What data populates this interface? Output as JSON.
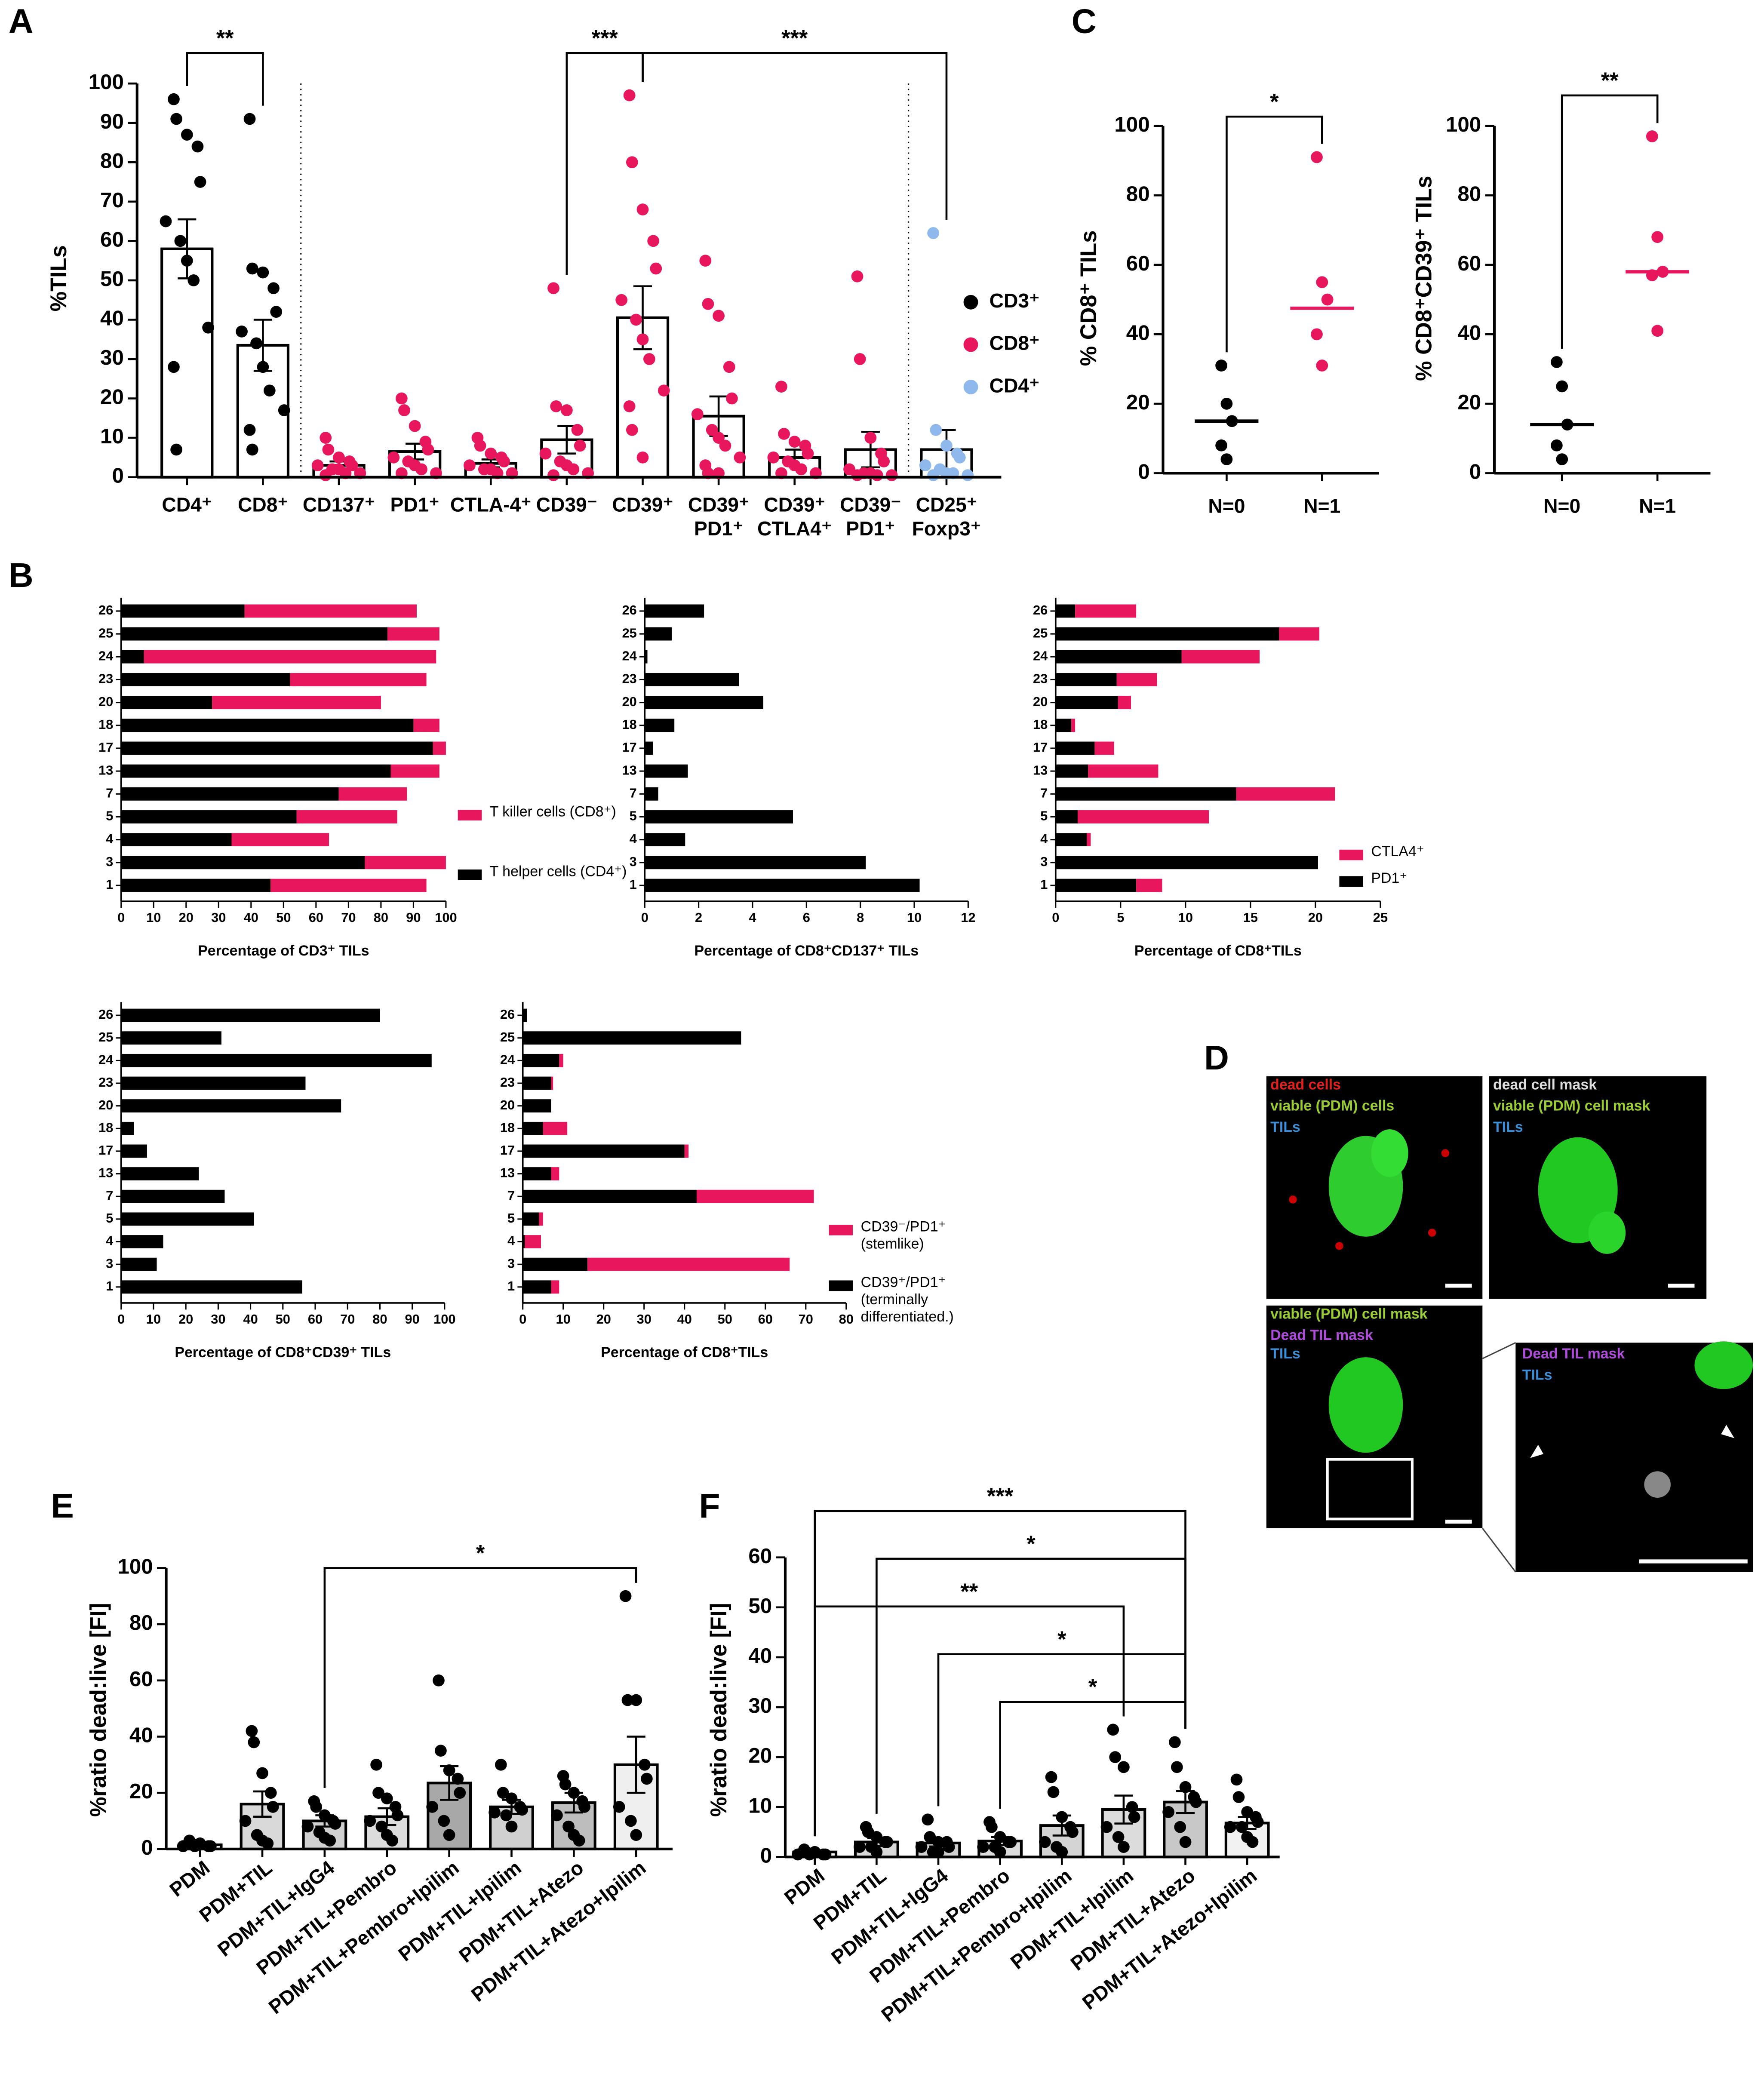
{
  "panel_labels": [
    "A",
    "B",
    "C",
    "D",
    "E",
    "F"
  ],
  "panel_d": {
    "images": [
      {
        "labels": [
          "dead cells",
          "viable (PDM) cells",
          "TILs"
        ]
      },
      {
        "labels": [
          "dead cell mask",
          "viable (PDM) cell mask",
          "TILs"
        ]
      },
      {
        "labels": [
          "viable (PDM) cell mask",
          "Dead TIL mask",
          "TILs"
        ]
      },
      {
        "labels": [
          "Dead TIL mask",
          "TILs"
        ]
      }
    ]
  },
  "chart_data": [
    {
      "type": "dot_bar",
      "ylabel": "%TILs",
      "categories": [
        [
          "CD4⁺"
        ],
        [
          "CD8⁺"
        ],
        [
          "CD137⁺"
        ],
        [
          "PD1⁺"
        ],
        [
          "CTLA-4⁺"
        ],
        [
          "CD39⁻"
        ],
        [
          "CD39⁺"
        ],
        [
          "CD39⁺",
          "PD1⁺"
        ],
        [
          "CD39⁺",
          "CTLA4⁺"
        ],
        [
          "CD39⁻",
          "PD1⁺"
        ],
        [
          "CD25⁺",
          "Foxp3⁺"
        ]
      ],
      "values": [
        58,
        33.5,
        3,
        6.5,
        3.5,
        9.5,
        40.5,
        15.5,
        5,
        7,
        7
      ],
      "errors": [
        7.5,
        6.5,
        1,
        2,
        1,
        3.5,
        8,
        5,
        2,
        4.5,
        5
      ],
      "points": [
        [
          96,
          91,
          87,
          84,
          75,
          65,
          60,
          55,
          50,
          38,
          28,
          7
        ],
        [
          91,
          53,
          52,
          48,
          42,
          37,
          34,
          28,
          22,
          17,
          12,
          7
        ],
        [
          10,
          7,
          5,
          4,
          3,
          3,
          2,
          2,
          1,
          1,
          0.5
        ],
        [
          20,
          17,
          13,
          9,
          7,
          5,
          4,
          3,
          2,
          1,
          1
        ],
        [
          10,
          8,
          6,
          5,
          4,
          3,
          2,
          2,
          1,
          1
        ],
        [
          48,
          18,
          17,
          12,
          8,
          6,
          4,
          3,
          2,
          1,
          0.5
        ],
        [
          97,
          80,
          68,
          60,
          53,
          45,
          40,
          35,
          30,
          22,
          18,
          12,
          5
        ],
        [
          55,
          44,
          41,
          28,
          20,
          16,
          12,
          10,
          8,
          5,
          3,
          1,
          1
        ],
        [
          23,
          11,
          9,
          8,
          6,
          5,
          4,
          3,
          2,
          1,
          1
        ],
        [
          51,
          30,
          10,
          6,
          4,
          2,
          1,
          1,
          0.5,
          0.5,
          0.5
        ],
        [
          62,
          12,
          8,
          6,
          5,
          3,
          2,
          1,
          1,
          0.5,
          0.5
        ]
      ],
      "point_colors": [
        "#000000",
        "#000000",
        "#e8175d",
        "#e8175d",
        "#e8175d",
        "#e8175d",
        "#e8175d",
        "#e8175d",
        "#e8175d",
        "#e8175d",
        "#8fb8ec"
      ],
      "bar_color": "#ffffff",
      "legend": [
        {
          "name": "CD3⁺",
          "color": "#000000"
        },
        {
          "name": "CD8⁺",
          "color": "#e8175d"
        },
        {
          "name": "CD4⁺",
          "color": "#8fb8ec"
        }
      ],
      "brackets": [
        {
          "from": [
            "CD4⁺"
          ],
          "to": [
            "CD8⁺"
          ],
          "label": "**"
        },
        {
          "from": [
            "CD39⁻"
          ],
          "to": [
            "CD39⁺"
          ],
          "label": "***"
        },
        {
          "from": [
            "CD39⁺"
          ],
          "to": [
            "CD25⁺",
            "Foxp3⁺"
          ],
          "label": "***"
        }
      ],
      "ylim": [
        0,
        100
      ],
      "yticks": [
        0,
        10,
        20,
        30,
        40,
        50,
        60,
        70,
        80,
        90,
        100
      ]
    },
    {
      "type": "dot_median",
      "ylabel": "% CD8⁺ TILs",
      "categories": [
        "N=0",
        "N=1"
      ],
      "points": [
        [
          31,
          20,
          15,
          8,
          4
        ],
        [
          91,
          55,
          50,
          40,
          31
        ]
      ],
      "medians": [
        15,
        47.5
      ],
      "point_colors": [
        "#000000",
        "#e8175d"
      ],
      "brackets": [
        {
          "from": "N=0",
          "to": "N=1",
          "label": "*"
        }
      ],
      "ylim": [
        0,
        100
      ],
      "yticks": [
        0,
        20,
        40,
        60,
        80,
        100
      ]
    },
    {
      "type": "dot_median",
      "ylabel": "% CD8⁺CD39⁺ TILs",
      "categories": [
        "N=0",
        "N=1"
      ],
      "points": [
        [
          32,
          25,
          14,
          8,
          4
        ],
        [
          97,
          68,
          58,
          57,
          41
        ]
      ],
      "medians": [
        14,
        58
      ],
      "point_colors": [
        "#000000",
        "#e8175d"
      ],
      "brackets": [
        {
          "from": "N=0",
          "to": "N=1",
          "label": "**"
        }
      ],
      "ylim": [
        0,
        100
      ],
      "yticks": [
        0,
        20,
        40,
        60,
        80,
        100
      ]
    },
    {
      "type": "hbar",
      "stacked": true,
      "xlabel": "Percentage of CD3⁺ TILs",
      "categories": [
        "26",
        "25",
        "24",
        "23",
        "20",
        "18",
        "17",
        "13",
        "7",
        "5",
        "4",
        "3",
        "1"
      ],
      "series": [
        {
          "name": "T helper cells (CD4⁺)",
          "color": "#000000",
          "values": [
            38,
            82,
            7,
            52,
            28,
            90,
            96,
            83,
            67,
            54,
            34,
            75,
            46
          ]
        },
        {
          "name": "T killer cells (CD8⁺)",
          "color": "#e8175d",
          "values": [
            53,
            16,
            90,
            42,
            52,
            8,
            4,
            15,
            21,
            31,
            30,
            25,
            48
          ]
        }
      ],
      "xlim": [
        0,
        100
      ],
      "xticks": [
        0,
        10,
        20,
        30,
        40,
        50,
        60,
        70,
        80,
        90,
        100
      ]
    },
    {
      "type": "hbar",
      "xlabel": "Percentage of CD8⁺CD137⁺ TILs",
      "categories": [
        "26",
        "25",
        "24",
        "23",
        "20",
        "18",
        "17",
        "13",
        "7",
        "5",
        "4",
        "3",
        "1"
      ],
      "series": [
        {
          "color": "#000000",
          "values": [
            2.2,
            1.0,
            0.1,
            3.5,
            4.4,
            1.1,
            0.3,
            1.6,
            0.5,
            5.5,
            1.5,
            8.2,
            10.2
          ]
        }
      ],
      "xlim": [
        0,
        12
      ],
      "xticks": [
        0,
        2,
        4,
        6,
        8,
        10,
        12
      ]
    },
    {
      "type": "hbar",
      "stacked": true,
      "xlabel": "Percentage of CD8⁺TILs",
      "categories": [
        "26",
        "25",
        "24",
        "23",
        "20",
        "18",
        "17",
        "13",
        "7",
        "5",
        "4",
        "3",
        "1"
      ],
      "series": [
        {
          "name": "PD1⁺",
          "color": "#000000",
          "values": [
            1.5,
            17.2,
            9.7,
            4.7,
            4.8,
            1.2,
            3.0,
            2.5,
            13.9,
            1.7,
            2.4,
            20.2,
            6.2
          ]
        },
        {
          "name": "CTLA4⁺",
          "color": "#e8175d",
          "values": [
            4.7,
            3.1,
            6.0,
            3.1,
            1.0,
            0.3,
            1.5,
            5.4,
            7.6,
            10.1,
            0.3,
            0,
            2.0
          ]
        }
      ],
      "xlim": [
        0,
        25
      ],
      "xticks": [
        0,
        5,
        10,
        15,
        20,
        25
      ]
    },
    {
      "type": "hbar",
      "xlabel": "Percentage of CD8⁺CD39⁺ TILs",
      "categories": [
        "26",
        "25",
        "24",
        "23",
        "20",
        "18",
        "17",
        "13",
        "7",
        "5",
        "4",
        "3",
        "1"
      ],
      "series": [
        {
          "color": "#000000",
          "values": [
            80,
            31,
            96,
            57,
            68,
            4,
            8,
            24,
            32,
            41,
            13,
            11,
            56
          ]
        }
      ],
      "xlim": [
        0,
        100
      ],
      "xticks": [
        0,
        10,
        20,
        30,
        40,
        50,
        60,
        70,
        80,
        90,
        100
      ]
    },
    {
      "type": "hbar",
      "stacked": true,
      "xlabel": "Percentage of CD8⁺TILs",
      "categories": [
        "26",
        "25",
        "24",
        "23",
        "20",
        "18",
        "17",
        "13",
        "7",
        "5",
        "4",
        "3",
        "1"
      ],
      "series": [
        {
          "name": "CD39⁺/PD1⁺ (terminally differentiated.)",
          "color": "#000000",
          "values": [
            1,
            54,
            9,
            7,
            7,
            5,
            40,
            7,
            43,
            4,
            0.5,
            16,
            7
          ]
        },
        {
          "name": "CD39⁻/PD1⁺ (stemlike)",
          "color": "#e8175d",
          "values": [
            0,
            0,
            1,
            0.5,
            0,
            6,
            1,
            2,
            29,
            1,
            4,
            50,
            2
          ]
        }
      ],
      "xlim": [
        0,
        80
      ],
      "xticks": [
        0,
        10,
        20,
        30,
        40,
        50,
        60,
        70,
        80
      ]
    },
    {
      "type": "dot_bar",
      "ylabel": "%ratio dead:live [FI]",
      "categories": [
        "PDM",
        "PDM+TIL",
        "PDM+TIL+IgG4",
        "PDM+TIL+Pembro",
        "PDM+TIL+Pembro+Ipilim",
        "PDM+TIL+Ipilim",
        "PDM+TIL+Atezo",
        "PDM+TIL+Atezo+Ipilim"
      ],
      "values": [
        1.5,
        16,
        10,
        11.5,
        23.5,
        15,
        16.5,
        30
      ],
      "errors": [
        0.5,
        4.5,
        2,
        3,
        6,
        2.5,
        3.5,
        10
      ],
      "points": [
        [
          3,
          2,
          2,
          1,
          1,
          1,
          1
        ],
        [
          42,
          38,
          27,
          20,
          15,
          10,
          5,
          3,
          2
        ],
        [
          17,
          15,
          12,
          10,
          9,
          8,
          6,
          4,
          3
        ],
        [
          30,
          20,
          18,
          15,
          12,
          10,
          8,
          5,
          3
        ],
        [
          60,
          35,
          28,
          25,
          20,
          15,
          10,
          5
        ],
        [
          30,
          20,
          18,
          15,
          14,
          13,
          12,
          8
        ],
        [
          26,
          23,
          20,
          17,
          15,
          12,
          8,
          5,
          3
        ],
        [
          90,
          53,
          53,
          30,
          25,
          15,
          10,
          5
        ]
      ],
      "point_colors": [
        "#000000",
        "#000000",
        "#000000",
        "#000000",
        "#000000",
        "#000000",
        "#000000",
        "#000000"
      ],
      "bar_colors": [
        "#ffffff",
        "#d9d9d9",
        "#d0d0d0",
        "#dcdcdc",
        "#a8a8a8",
        "#d0d0d0",
        "#bdbdbd",
        "#efefef"
      ],
      "brackets": [
        {
          "from": "PDM+TIL+IgG4",
          "to": "PDM+TIL+Atezo+Ipilim",
          "label": "*"
        }
      ],
      "ylim": [
        0,
        100
      ],
      "yticks": [
        0,
        20,
        40,
        60,
        80,
        100
      ]
    },
    {
      "type": "dot_bar",
      "ylabel": "%ratio dead:live [FI]",
      "categories": [
        "PDM",
        "PDM+TIL",
        "PDM+TIL+IgG4",
        "PDM+TIL+Pembro",
        "PDM+TIL+Pembro+Ipilim",
        "PDM+TIL+Ipilim",
        "PDM+TIL+Atezo",
        "PDM+TIL+Atezo+Ipilim"
      ],
      "values": [
        1,
        3,
        2.8,
        3.2,
        6.3,
        9.5,
        11,
        6.8
      ],
      "errors": [
        0.3,
        0.8,
        0.7,
        0.8,
        2,
        2.8,
        2.2,
        1.2
      ],
      "points": [
        [
          1.5,
          1,
          1,
          0.5,
          0.5,
          0.5,
          0.5
        ],
        [
          6,
          5,
          4,
          3,
          3,
          2,
          2,
          1
        ],
        [
          7.5,
          4,
          3,
          3,
          2,
          2,
          1,
          1
        ],
        [
          7,
          6,
          4,
          3,
          3,
          2,
          2,
          1
        ],
        [
          16,
          13,
          8,
          6,
          5,
          3,
          2,
          1
        ],
        [
          25.5,
          20,
          18,
          10,
          8,
          6,
          4,
          2
        ],
        [
          23,
          18,
          14,
          12,
          11,
          9,
          6,
          3
        ],
        [
          15.5,
          12,
          9,
          8,
          7,
          6,
          6,
          4,
          3
        ]
      ],
      "point_colors": [
        "#000000",
        "#000000",
        "#000000",
        "#000000",
        "#000000",
        "#000000",
        "#000000",
        "#000000"
      ],
      "bar_colors": [
        "#ffffff",
        "#d9d9d9",
        "#d0d0d0",
        "#dcdcdc",
        "#d4d4d4",
        "#dcdcdc",
        "#c8c8c8",
        "#f2f2f2"
      ],
      "brackets": [
        {
          "from": "PDM",
          "to": "PDM+TIL+Atezo",
          "label": "***"
        },
        {
          "from": "PDM+TIL",
          "to": "PDM+TIL+Atezo",
          "label": "*"
        },
        {
          "from": "PDM",
          "to": "PDM+TIL+Ipilim",
          "label": "**"
        },
        {
          "from": "PDM+TIL+IgG4",
          "to": "PDM+TIL+Atezo",
          "label": "*"
        },
        {
          "from": "PDM+TIL+Pembro",
          "to": "PDM+TIL+Atezo",
          "label": "*"
        }
      ],
      "ylim": [
        0,
        60
      ],
      "yticks": [
        0,
        10,
        20,
        30,
        40,
        50,
        60
      ]
    }
  ]
}
